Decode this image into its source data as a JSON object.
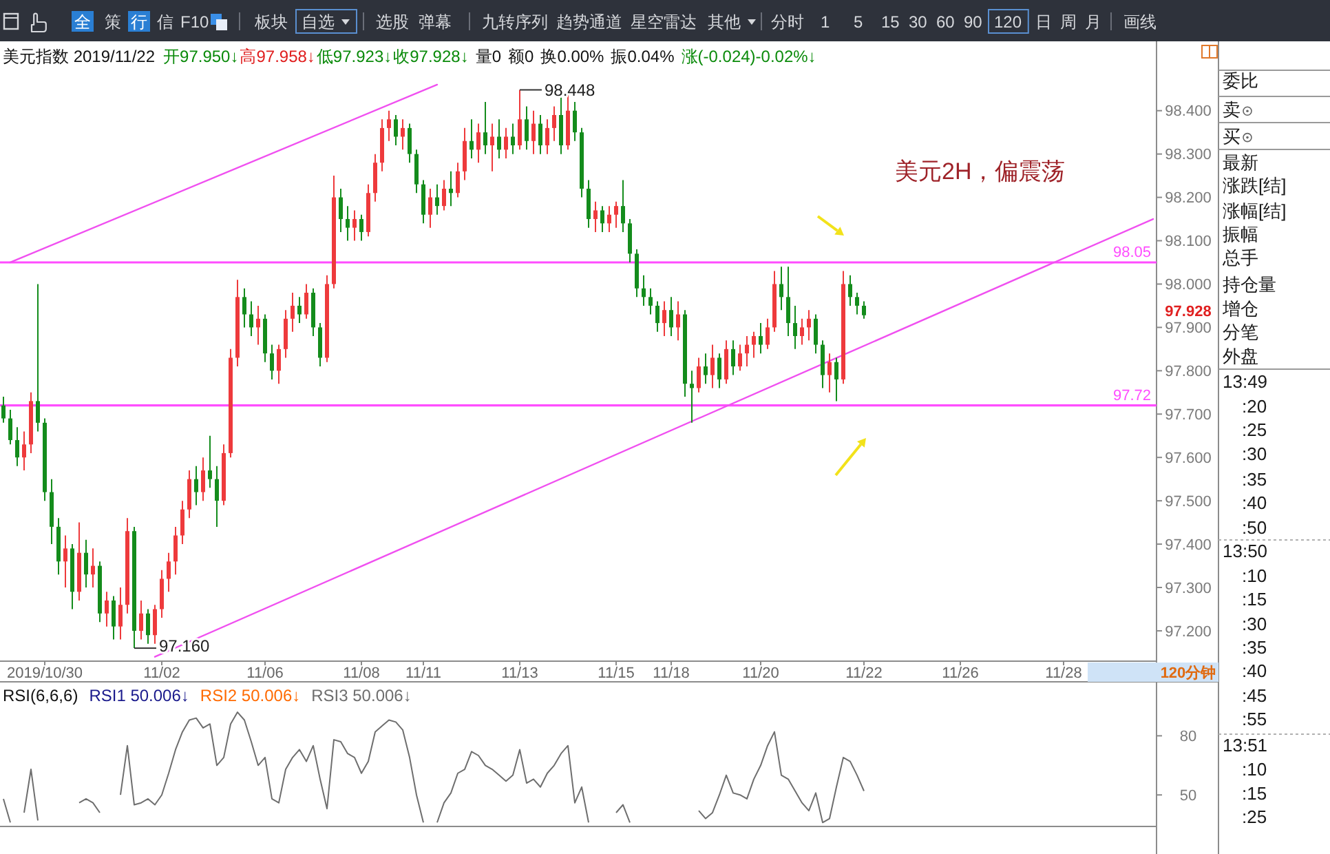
{
  "chart_data": [
    {
      "type": "candlestick",
      "title": "美元指数 2019/11/22",
      "categories": [
        null,
        null,
        null,
        null,
        null,
        null,
        "2019/10/30",
        null,
        null,
        null,
        null,
        null,
        null,
        null,
        null,
        null,
        null,
        null,
        null,
        null,
        null,
        null,
        null,
        "11/02",
        null,
        null,
        null,
        null,
        null,
        null,
        null,
        null,
        null,
        null,
        null,
        null,
        null,
        null,
        "11/06",
        null,
        null,
        null,
        null,
        null,
        null,
        null,
        null,
        null,
        null,
        null,
        null,
        null,
        "11/08",
        null,
        null,
        null,
        null,
        null,
        null,
        null,
        null,
        "11/11",
        null,
        null,
        null,
        null,
        null,
        null,
        null,
        null,
        null,
        null,
        null,
        null,
        null,
        "11/13",
        null,
        null,
        null,
        null,
        null,
        null,
        null,
        null,
        null,
        null,
        null,
        null,
        null,
        "11/15",
        null,
        null,
        null,
        null,
        null,
        null,
        null,
        "11/18",
        null,
        null,
        null,
        null,
        null,
        null,
        null,
        null,
        null,
        null,
        null,
        null,
        "11/20",
        null,
        null,
        null,
        null,
        null,
        null,
        null,
        null,
        null,
        null,
        null,
        null,
        null,
        null,
        "11/22",
        null,
        null,
        null,
        null,
        null,
        null,
        null,
        null,
        null,
        null,
        null,
        null,
        null,
        "11/26",
        null,
        null,
        null,
        null,
        null,
        null,
        null,
        null,
        null,
        null,
        null,
        null,
        null,
        null,
        "11/28",
        null,
        null,
        null,
        null,
        null,
        null,
        null,
        null,
        null,
        null,
        null,
        null,
        null
      ],
      "ohlc": [
        [
          97.72,
          97.74,
          97.68,
          97.69
        ],
        [
          97.69,
          97.71,
          97.63,
          97.64
        ],
        [
          97.64,
          97.67,
          97.58,
          97.6
        ],
        [
          97.6,
          97.66,
          97.57,
          97.63
        ],
        [
          97.63,
          97.75,
          97.61,
          97.73
        ],
        [
          97.73,
          98.0,
          97.66,
          97.68
        ],
        [
          97.68,
          97.69,
          97.5,
          97.52
        ],
        [
          97.52,
          97.55,
          97.4,
          97.44
        ],
        [
          97.44,
          97.46,
          97.33,
          97.36
        ],
        [
          97.36,
          97.42,
          97.3,
          97.39
        ],
        [
          97.39,
          97.4,
          97.25,
          97.29
        ],
        [
          97.29,
          97.45,
          97.27,
          97.38
        ],
        [
          97.38,
          97.41,
          97.3,
          97.33
        ],
        [
          97.33,
          97.39,
          97.3,
          97.35
        ],
        [
          97.35,
          97.36,
          97.22,
          97.24
        ],
        [
          97.24,
          97.29,
          97.21,
          97.27
        ],
        [
          97.27,
          97.28,
          97.18,
          97.21
        ],
        [
          97.21,
          97.3,
          97.18,
          97.26
        ],
        [
          97.26,
          97.46,
          97.24,
          97.43
        ],
        [
          97.43,
          97.44,
          97.16,
          97.2
        ],
        [
          97.2,
          97.27,
          97.18,
          97.24
        ],
        [
          97.24,
          97.25,
          97.17,
          97.19
        ],
        [
          97.19,
          97.26,
          97.17,
          97.25
        ],
        [
          97.25,
          97.34,
          97.23,
          97.32
        ],
        [
          97.32,
          97.38,
          97.29,
          97.36
        ],
        [
          97.36,
          97.44,
          97.33,
          97.42
        ],
        [
          97.42,
          97.5,
          97.4,
          97.48
        ],
        [
          97.48,
          97.57,
          97.46,
          97.55
        ],
        [
          97.55,
          97.58,
          97.49,
          97.52
        ],
        [
          97.52,
          97.6,
          97.5,
          97.57
        ],
        [
          97.57,
          97.65,
          97.53,
          97.55
        ],
        [
          97.55,
          97.58,
          97.44,
          97.5
        ],
        [
          97.5,
          97.63,
          97.49,
          97.61
        ],
        [
          97.61,
          97.85,
          97.6,
          97.83
        ],
        [
          97.83,
          98.01,
          97.81,
          97.97
        ],
        [
          97.97,
          97.99,
          97.9,
          97.93
        ],
        [
          97.93,
          97.96,
          97.88,
          97.9
        ],
        [
          97.9,
          97.95,
          97.86,
          97.92
        ],
        [
          97.92,
          97.93,
          97.82,
          97.84
        ],
        [
          97.84,
          97.86,
          97.78,
          97.8
        ],
        [
          97.8,
          97.86,
          97.77,
          97.85
        ],
        [
          97.85,
          97.94,
          97.83,
          97.92
        ],
        [
          97.92,
          97.98,
          97.89,
          97.95
        ],
        [
          97.95,
          97.97,
          97.91,
          97.93
        ],
        [
          97.93,
          98.0,
          97.92,
          97.98
        ],
        [
          97.98,
          97.99,
          97.88,
          97.9
        ],
        [
          97.9,
          97.91,
          97.81,
          97.83
        ],
        [
          97.83,
          98.02,
          97.82,
          98.0
        ],
        [
          98.0,
          98.25,
          97.99,
          98.2
        ],
        [
          98.2,
          98.22,
          98.12,
          98.15
        ],
        [
          98.15,
          98.18,
          98.1,
          98.13
        ],
        [
          98.13,
          98.17,
          98.1,
          98.15
        ],
        [
          98.15,
          98.16,
          98.1,
          98.12
        ],
        [
          98.12,
          98.23,
          98.11,
          98.21
        ],
        [
          98.21,
          98.3,
          98.19,
          98.28
        ],
        [
          98.28,
          98.38,
          98.26,
          98.36
        ],
        [
          98.36,
          98.4,
          98.33,
          98.38
        ],
        [
          98.38,
          98.39,
          98.32,
          98.34
        ],
        [
          98.34,
          98.38,
          98.31,
          98.36
        ],
        [
          98.36,
          98.37,
          98.28,
          98.3
        ],
        [
          98.3,
          98.31,
          98.21,
          98.23
        ],
        [
          98.23,
          98.24,
          98.14,
          98.16
        ],
        [
          98.16,
          98.22,
          98.13,
          98.2
        ],
        [
          98.2,
          98.23,
          98.16,
          98.18
        ],
        [
          98.18,
          98.24,
          98.17,
          98.22
        ],
        [
          98.22,
          98.26,
          98.18,
          98.21
        ],
        [
          98.21,
          98.28,
          98.2,
          98.26
        ],
        [
          98.26,
          98.36,
          98.24,
          98.33
        ],
        [
          98.33,
          98.38,
          98.29,
          98.31
        ],
        [
          98.31,
          98.37,
          98.28,
          98.35
        ],
        [
          98.35,
          98.42,
          98.3,
          98.32
        ],
        [
          98.32,
          98.37,
          98.26,
          98.34
        ],
        [
          98.34,
          98.38,
          98.29,
          98.31
        ],
        [
          98.31,
          98.36,
          98.29,
          98.34
        ],
        [
          98.34,
          98.37,
          98.3,
          98.32
        ],
        [
          98.32,
          98.448,
          98.31,
          98.38
        ],
        [
          98.38,
          98.41,
          98.31,
          98.33
        ],
        [
          98.33,
          98.4,
          98.3,
          98.37
        ],
        [
          98.37,
          98.39,
          98.3,
          98.32
        ],
        [
          98.32,
          98.38,
          98.3,
          98.36
        ],
        [
          98.36,
          98.41,
          98.33,
          98.39
        ],
        [
          98.39,
          98.43,
          98.3,
          98.32
        ],
        [
          98.32,
          98.44,
          98.31,
          98.4
        ],
        [
          98.4,
          98.42,
          98.33,
          98.35
        ],
        [
          98.35,
          98.36,
          98.2,
          98.22
        ],
        [
          98.22,
          98.24,
          98.13,
          98.15
        ],
        [
          98.15,
          98.19,
          98.12,
          98.17
        ],
        [
          98.17,
          98.18,
          98.12,
          98.14
        ],
        [
          98.14,
          98.18,
          98.12,
          98.16
        ],
        [
          98.16,
          98.19,
          98.13,
          98.18
        ],
        [
          98.18,
          98.24,
          98.12,
          98.14
        ],
        [
          98.14,
          98.15,
          98.05,
          98.07
        ],
        [
          98.07,
          98.08,
          97.97,
          97.99
        ],
        [
          97.99,
          98.02,
          97.95,
          97.97
        ],
        [
          97.97,
          97.99,
          97.93,
          97.95
        ],
        [
          97.95,
          97.96,
          97.89,
          97.91
        ],
        [
          97.91,
          97.96,
          97.88,
          97.94
        ],
        [
          97.94,
          97.97,
          97.88,
          97.9
        ],
        [
          97.9,
          97.96,
          97.87,
          97.93
        ],
        [
          97.93,
          97.94,
          97.74,
          97.77
        ],
        [
          97.77,
          97.8,
          97.68,
          97.76
        ],
        [
          97.76,
          97.83,
          97.75,
          97.81
        ],
        [
          97.81,
          97.84,
          97.77,
          97.79
        ],
        [
          97.79,
          97.86,
          97.76,
          97.83
        ],
        [
          97.83,
          97.84,
          97.76,
          97.78
        ],
        [
          97.78,
          97.87,
          97.77,
          97.85
        ],
        [
          97.85,
          97.87,
          97.79,
          97.81
        ],
        [
          97.81,
          97.86,
          97.8,
          97.84
        ],
        [
          97.84,
          97.88,
          97.81,
          97.86
        ],
        [
          97.86,
          97.89,
          97.83,
          97.88
        ],
        [
          97.88,
          97.91,
          97.84,
          97.86
        ],
        [
          97.86,
          97.92,
          97.85,
          97.9
        ],
        [
          97.9,
          98.03,
          97.89,
          98.0
        ],
        [
          98.0,
          98.04,
          97.94,
          97.97
        ],
        [
          97.97,
          98.04,
          97.88,
          97.91
        ],
        [
          97.91,
          97.95,
          97.85,
          97.88
        ],
        [
          97.88,
          97.92,
          97.86,
          97.9
        ],
        [
          97.9,
          97.94,
          97.87,
          97.92
        ],
        [
          97.92,
          97.93,
          97.84,
          97.86
        ],
        [
          97.86,
          97.87,
          97.76,
          97.79
        ],
        [
          97.79,
          97.84,
          97.75,
          97.82
        ],
        [
          97.82,
          97.83,
          97.73,
          97.78
        ],
        [
          97.78,
          98.03,
          97.77,
          98.0
        ],
        [
          98.0,
          98.02,
          97.95,
          97.97
        ],
        [
          97.97,
          97.98,
          97.93,
          97.95
        ],
        [
          97.95,
          97.96,
          97.92,
          97.928
        ],
        null,
        null,
        null,
        null,
        null,
        null,
        null,
        null,
        null,
        null,
        null,
        null,
        null,
        null,
        null,
        null,
        null,
        null,
        null,
        null,
        null,
        null,
        null,
        null,
        null,
        null,
        null,
        null,
        null,
        null,
        null,
        null,
        null,
        null,
        null,
        null,
        null,
        null,
        null,
        null,
        null,
        null
      ],
      "series": [
        {
          "type": "line",
          "color": "#f050f0",
          "values": [
            null,
            98.05,
            null,
            null,
            null,
            null,
            null,
            null,
            null,
            null,
            null,
            null,
            null,
            null,
            null,
            null,
            null,
            null,
            null,
            null,
            null,
            null,
            null,
            null,
            null,
            null,
            null,
            null,
            null,
            null,
            null,
            null,
            null,
            null,
            null,
            null,
            null,
            null,
            null,
            null,
            null,
            null,
            null,
            null,
            null,
            null,
            null,
            null,
            null,
            null,
            null,
            null,
            null,
            null,
            null,
            null,
            null,
            null,
            null,
            null,
            null,
            null,
            null,
            98.46,
            null,
            null,
            null,
            null,
            null,
            null,
            null,
            null,
            null,
            null,
            null,
            null,
            null,
            null,
            null,
            null,
            null,
            null,
            null,
            null,
            null,
            null,
            null,
            null,
            null,
            null,
            null,
            null,
            null,
            null,
            null,
            null,
            null,
            null,
            null,
            null,
            null,
            null,
            null,
            null,
            null,
            null,
            null,
            null,
            null,
            null,
            null,
            null,
            null,
            null,
            null,
            null,
            null,
            null,
            null,
            null,
            null,
            null,
            null,
            null,
            null,
            null,
            null,
            null,
            null,
            null,
            null,
            null,
            null,
            null,
            null,
            null,
            null,
            null,
            null,
            null,
            null,
            null,
            null,
            null,
            null,
            null,
            null,
            null,
            null,
            null,
            null,
            null,
            null,
            null,
            null,
            null,
            null,
            null,
            null,
            null,
            null,
            null,
            null,
            null,
            null,
            null,
            null,
            null
          ]
        },
        {
          "type": "line",
          "color": "#f050f0",
          "values": [
            null,
            null,
            null,
            null,
            null,
            null,
            null,
            null,
            null,
            null,
            null,
            null,
            null,
            null,
            null,
            null,
            null,
            null,
            null,
            null,
            null,
            null,
            97.14,
            null,
            null,
            null,
            null,
            null,
            null,
            null,
            null,
            null,
            null,
            null,
            null,
            null,
            null,
            null,
            null,
            null,
            null,
            null,
            null,
            null,
            null,
            null,
            null,
            null,
            null,
            null,
            null,
            null,
            null,
            null,
            null,
            null,
            null,
            null,
            null,
            null,
            null,
            null,
            null,
            null,
            null,
            null,
            null,
            null,
            null,
            null,
            null,
            null,
            null,
            null,
            null,
            null,
            null,
            null,
            null,
            null,
            null,
            null,
            null,
            null,
            null,
            null,
            null,
            null,
            null,
            null,
            null,
            null,
            null,
            null,
            null,
            null,
            null,
            null,
            null,
            null,
            null,
            null,
            null,
            null,
            null,
            null,
            null,
            null,
            null,
            null,
            null,
            null,
            null,
            null,
            null,
            null,
            null,
            null,
            null,
            null,
            null,
            null,
            null,
            null,
            null,
            null,
            null,
            null,
            null,
            null,
            null,
            null,
            null,
            null,
            null,
            null,
            null,
            null,
            null,
            null,
            null,
            null,
            null,
            null,
            null,
            null,
            null,
            null,
            null,
            null,
            null,
            null,
            null,
            null,
            null,
            null,
            null,
            null,
            null,
            null,
            null,
            null,
            null,
            null,
            null,
            null,
            null,
            98.15
          ]
        }
      ],
      "ylim": [
        97.13,
        98.56
      ],
      "yticks": [
        {
          "value": 97.2,
          "label": "97.200"
        },
        {
          "value": 97.3,
          "label": "97.300"
        },
        {
          "value": 97.4,
          "label": "97.400"
        },
        {
          "value": 97.5,
          "label": "97.500"
        },
        {
          "value": 97.6,
          "label": "97.600"
        },
        {
          "value": 97.7,
          "label": "97.700"
        },
        {
          "value": 97.8,
          "label": "97.800"
        },
        {
          "value": 97.9,
          "label": "97.900"
        },
        {
          "value": 98.0,
          "label": "98.000"
        },
        {
          "value": 98.1,
          "label": "98.100"
        },
        {
          "value": 98.2,
          "label": "98.200"
        },
        {
          "value": 98.3,
          "label": "98.300"
        },
        {
          "value": 98.4,
          "label": "98.400"
        }
      ],
      "ref_lines": [
        {
          "axis": "y",
          "value": 98.05,
          "label": "98.05",
          "color": "#ff4dff"
        },
        {
          "axis": "y",
          "value": 97.72,
          "label": "97.72",
          "color": "#ff4dff"
        }
      ],
      "annotations": [
        "开97.950↓",
        "高97.958↓",
        "低97.923↓",
        "收97.928↓",
        "量0",
        "额0",
        "换0.00%",
        "振0.04%",
        "涨(-0.024)-0.02%↓",
        "美元2H，偏震荡",
        "120分钟",
        "97.928",
        {
          "text": "98.448",
          "y": 98.448
        },
        {
          "text": "97.160",
          "y": 97.16
        }
      ]
    },
    {
      "type": "line",
      "title": "RSI(6,6,6)",
      "legend": "top left",
      "categories": [
        null,
        null,
        null,
        null,
        null,
        null,
        null,
        null,
        null,
        null,
        null,
        null,
        null,
        null,
        null,
        null,
        null,
        null,
        null,
        null,
        null,
        null,
        null,
        null,
        null,
        null,
        null,
        null,
        null,
        null,
        null,
        null,
        null,
        null,
        null,
        null,
        null,
        null,
        null,
        null,
        null,
        null,
        null,
        null,
        null,
        null,
        null,
        null,
        null,
        null,
        null,
        null,
        null,
        null,
        null,
        null,
        null,
        null,
        null,
        null,
        null,
        null,
        null,
        null,
        null,
        null,
        null,
        null,
        null,
        null,
        null,
        null,
        null,
        null,
        null,
        null,
        null,
        null,
        null,
        null,
        null,
        null,
        null,
        null,
        null,
        null,
        null,
        null,
        null,
        null,
        null,
        null,
        null,
        null,
        null,
        null,
        null,
        null,
        null,
        null,
        null,
        null,
        null,
        null,
        null,
        null,
        null,
        null,
        null,
        null,
        null,
        null,
        null,
        null,
        null,
        null,
        null,
        null,
        null,
        null,
        null,
        null,
        null,
        null,
        null,
        null,
        null,
        null,
        null,
        null,
        null,
        null,
        null,
        null,
        null,
        null,
        null,
        null,
        null,
        null,
        null,
        null,
        null,
        null,
        null,
        null,
        null,
        null,
        null,
        null,
        null,
        null,
        null,
        null,
        null,
        null,
        null,
        null,
        null,
        null,
        null,
        null,
        null,
        null,
        null,
        null,
        null,
        null
      ],
      "series": [
        {
          "name": "RSI1 50.006↓",
          "color": "#1a1a8c",
          "values": [
            null,
            null,
            null,
            null,
            null,
            null,
            null,
            null,
            null,
            null,
            null,
            null,
            null,
            null,
            null,
            null,
            null,
            null,
            null,
            null,
            null,
            null,
            null,
            null,
            null,
            null,
            null,
            null,
            null,
            null,
            null,
            null,
            null,
            null,
            null,
            null,
            null,
            null,
            null,
            null,
            null,
            null,
            null,
            null,
            null,
            null,
            null,
            null,
            null,
            null,
            null,
            null,
            null,
            null,
            null,
            null,
            null,
            null,
            null,
            null,
            null,
            null,
            null,
            null,
            null,
            null,
            null,
            null,
            null,
            null,
            null,
            null,
            null,
            null,
            null,
            null,
            null,
            null,
            null,
            null,
            null,
            null,
            null,
            null,
            null,
            null,
            null,
            null,
            null,
            null,
            null,
            null,
            null,
            null,
            null,
            null,
            null,
            null,
            null,
            null,
            null,
            null,
            null,
            null,
            null,
            null,
            null,
            null,
            null,
            null,
            null,
            null,
            null,
            null,
            null,
            null,
            null,
            null,
            null,
            null,
            null,
            null,
            null,
            null,
            null,
            null,
            null,
            null,
            null,
            null,
            null,
            null,
            null,
            null,
            null,
            null,
            null,
            null,
            null,
            null,
            null,
            null,
            null,
            null,
            null,
            null,
            null,
            null,
            null,
            null,
            null,
            null,
            null,
            null,
            null,
            null,
            null,
            null,
            null,
            null,
            null,
            null,
            null,
            null,
            null,
            null,
            null,
            null
          ]
        },
        {
          "name": "RSI2 50.006↓",
          "color": "#ff6a00",
          "values": [
            null,
            null,
            null,
            null,
            null,
            null,
            null,
            null,
            null,
            null,
            null,
            null,
            null,
            null,
            null,
            null,
            null,
            null,
            null,
            null,
            null,
            null,
            null,
            null,
            null,
            null,
            null,
            null,
            null,
            null,
            null,
            null,
            null,
            null,
            null,
            null,
            null,
            null,
            null,
            null,
            null,
            null,
            null,
            null,
            null,
            null,
            null,
            null,
            null,
            null,
            null,
            null,
            null,
            null,
            null,
            null,
            null,
            null,
            null,
            null,
            null,
            null,
            null,
            null,
            null,
            null,
            null,
            null,
            null,
            null,
            null,
            null,
            null,
            null,
            null,
            null,
            null,
            null,
            null,
            null,
            null,
            null,
            null,
            null,
            null,
            null,
            null,
            null,
            null,
            null,
            null,
            null,
            null,
            null,
            null,
            null,
            null,
            null,
            null,
            null,
            null,
            null,
            null,
            null,
            null,
            null,
            null,
            null,
            null,
            null,
            null,
            null,
            null,
            null,
            null,
            null,
            null,
            null,
            null,
            null,
            null,
            null,
            null,
            null,
            null,
            null,
            null,
            null,
            null,
            null,
            null,
            null,
            null,
            null,
            null,
            null,
            null,
            null,
            null,
            null,
            null,
            null,
            null,
            null,
            null,
            null,
            null,
            null,
            null,
            null,
            null,
            null,
            null,
            null,
            null,
            null,
            null,
            null,
            null,
            null,
            null,
            null,
            null,
            null,
            null,
            null,
            null,
            null
          ]
        },
        {
          "name": "RSI3 50.006↓",
          "color": "#6e6e6e",
          "values": [
            48,
            36,
            null,
            41,
            63,
            37,
            null,
            null,
            null,
            null,
            null,
            46,
            48,
            46,
            41,
            null,
            null,
            50,
            75,
            45,
            46,
            48,
            45,
            50,
            61,
            73,
            82,
            88,
            89,
            84,
            86,
            65,
            69,
            86,
            92,
            88,
            77,
            65,
            69,
            48,
            46,
            63,
            69,
            73,
            67,
            75,
            58,
            43,
            78,
            77,
            71,
            69,
            61,
            67,
            82,
            85,
            88,
            87,
            83,
            69,
            50,
            36,
            null,
            36,
            46,
            51,
            61,
            63,
            72,
            70,
            65,
            63,
            60,
            57,
            60,
            73,
            56,
            58,
            54,
            61,
            65,
            71,
            75,
            46,
            54,
            36,
            null,
            null,
            null,
            41,
            45,
            36,
            null,
            null,
            null,
            null,
            null,
            null,
            null,
            null,
            null,
            42,
            38,
            41,
            50,
            60,
            51,
            50,
            48,
            58,
            65,
            75,
            82,
            60,
            58,
            52,
            46,
            42,
            51,
            36,
            38,
            54,
            69,
            67,
            60,
            52,
            null,
            null,
            null,
            null,
            null,
            null,
            null,
            null,
            null,
            null,
            null,
            null,
            null,
            null,
            null,
            null,
            null,
            null,
            null,
            null,
            null,
            null,
            null,
            null,
            null,
            null,
            null,
            null,
            null,
            null,
            null,
            null,
            null,
            null,
            null,
            null,
            null,
            null,
            null,
            null,
            null,
            null
          ]
        }
      ],
      "ylim": [
        34,
        106
      ],
      "yticks": [
        50,
        80
      ]
    },
    {
      "type": "other",
      "annotations": [
        "全",
        "策",
        "行",
        "信",
        "F10",
        "板块",
        "自选",
        "选股",
        "弹幕",
        "九转序列",
        "趋势通道",
        "星空雷达",
        "其他",
        "分时",
        "1",
        "5",
        "15",
        "30",
        "60",
        "90",
        "120",
        "日",
        "周",
        "月",
        "画线"
      ]
    },
    {
      "type": "other",
      "annotations": [
        "委比",
        "卖",
        "买",
        "最新",
        "涨跌[结]",
        "涨幅[结]",
        "振幅",
        "总手",
        "持仓量",
        "增仓",
        "分笔",
        "外盘",
        "13:49",
        ":20",
        ":25",
        ":30",
        ":35",
        ":40",
        ":50",
        "13:50",
        ":10",
        ":15",
        ":30",
        ":35",
        ":40",
        ":45",
        ":55",
        "13:51",
        ":10",
        ":15",
        ":25"
      ]
    }
  ]
}
